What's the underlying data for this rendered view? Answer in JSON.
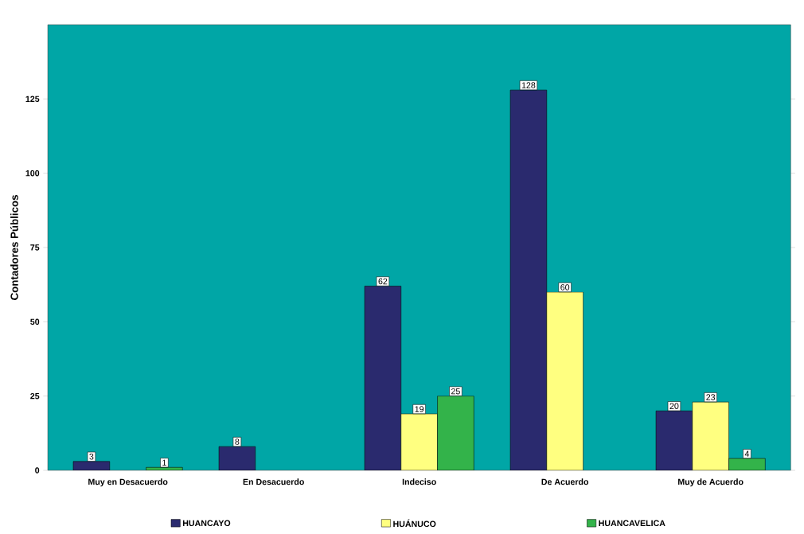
{
  "chart_data": {
    "type": "bar",
    "ylabel": "Contadores Públicos",
    "categories": [
      "Muy en Desacuerdo",
      "En Desacuerdo",
      "Indeciso",
      "De Acuerdo",
      "Muy de Acuerdo"
    ],
    "series": [
      {
        "name": "HUANCAYO",
        "color": "#2a2a6e",
        "values": [
          3,
          8,
          62,
          128,
          20
        ]
      },
      {
        "name": "HUÁNUCO",
        "color": "#ffff80",
        "values": [
          null,
          null,
          19,
          60,
          23
        ]
      },
      {
        "name": "HUANCAVELICA",
        "color": "#33b34a",
        "values": [
          1,
          null,
          25,
          null,
          4
        ]
      }
    ],
    "ylim": [
      0,
      150
    ],
    "yticks": [
      0,
      25,
      50,
      75,
      100,
      125
    ],
    "data_labels": true,
    "grid": false,
    "legend": "bottom"
  }
}
